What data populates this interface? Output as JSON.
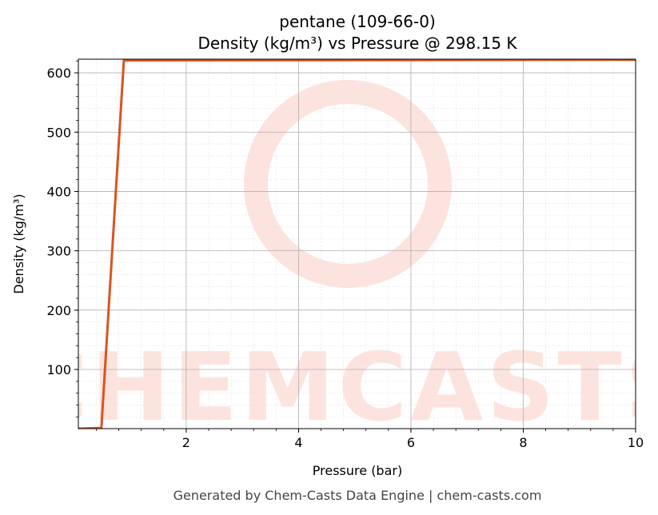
{
  "chart_data": {
    "type": "line",
    "title": "pentane (109-66-0)",
    "subtitle": "Density (kg/m³) vs Pressure @ 298.15 K",
    "x_label": "Pressure (bar)",
    "y_label": "Density (kg/m³)",
    "watermark": "CHEMCASTS",
    "footer": "Generated by Chem-Casts Data Engine | chem-casts.com",
    "x": [
      0.08,
      0.49,
      0.89,
      10
    ],
    "series": [
      {
        "name": "pentane",
        "color": "#d9541e",
        "values": [
          0.3,
          1.5,
          621,
          622
        ]
      }
    ],
    "xlim": [
      0.08,
      10
    ],
    "xticks": [
      2,
      4,
      6,
      8,
      10
    ],
    "ylim": [
      0.3,
      623
    ],
    "yticks": [
      100,
      200,
      300,
      400,
      500,
      600
    ],
    "grid": true,
    "minor_grid": true
  }
}
